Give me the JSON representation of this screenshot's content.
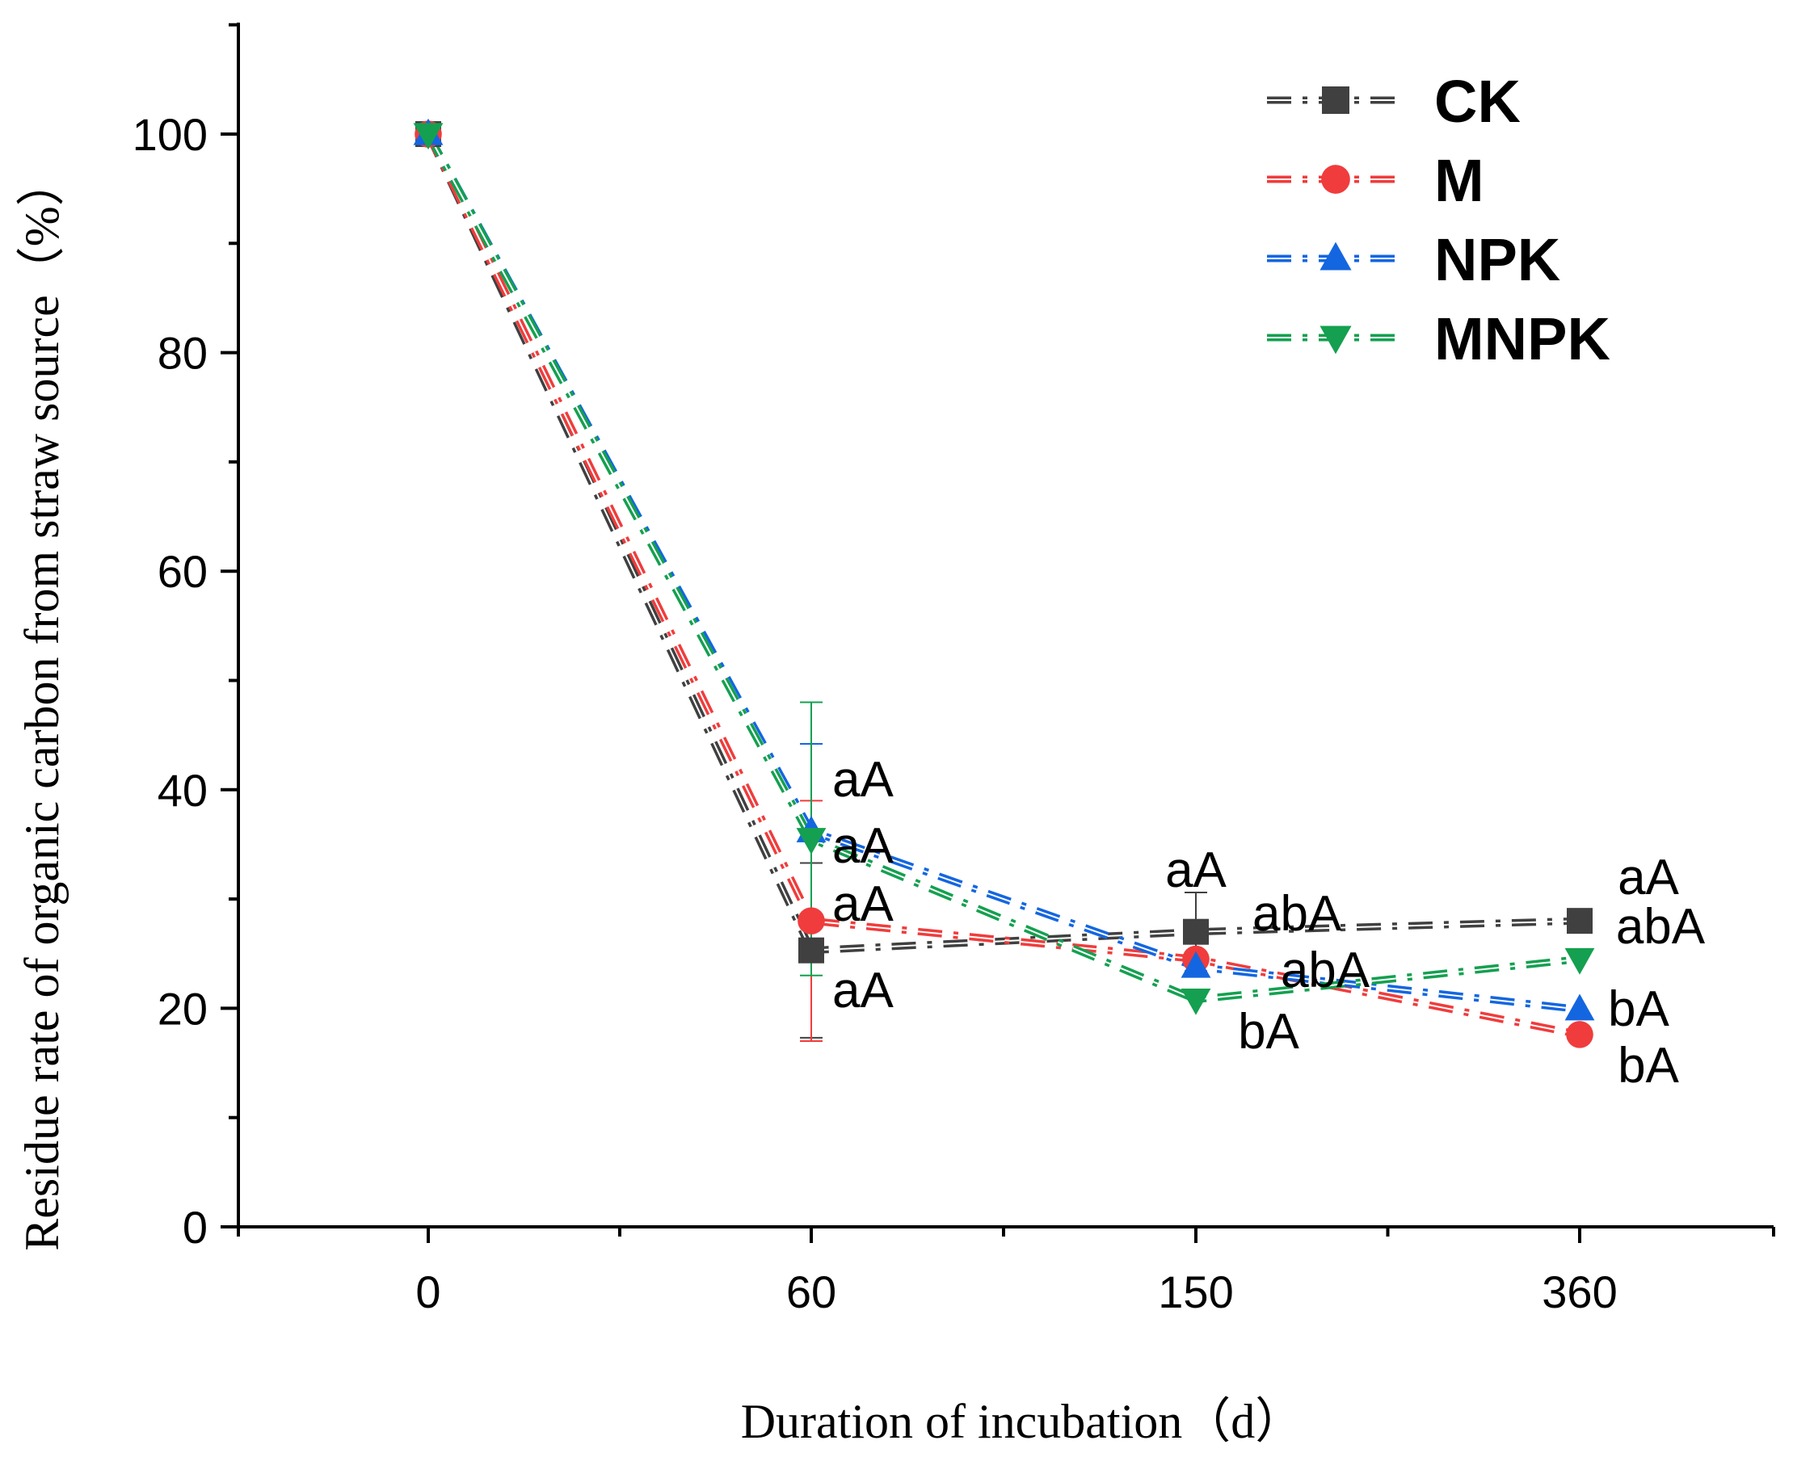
{
  "chart_data": {
    "type": "line",
    "title": "",
    "xlabel": "Duration of incubation（d）",
    "ylabel": "Residue rate of organic carbon from straw source（%）",
    "categories": [
      "0",
      "60",
      "150",
      "360"
    ],
    "ylim": [
      0,
      110
    ],
    "yticks": [
      0,
      20,
      40,
      60,
      80,
      100
    ],
    "legend_position": "top-right",
    "series": [
      {
        "name": "CK",
        "color": "#404040",
        "marker": "square",
        "values": [
          100,
          25.3,
          27,
          28
        ],
        "errors": [
          0,
          8,
          3.6,
          0
        ],
        "labels": [
          "",
          "aA",
          "aA",
          "aA"
        ]
      },
      {
        "name": "M",
        "color": "#f03c3c",
        "marker": "circle",
        "values": [
          100,
          28,
          24.5,
          17.6
        ],
        "errors": [
          0,
          11,
          0,
          0
        ],
        "labels": [
          "",
          "aA",
          "abA",
          "bA"
        ]
      },
      {
        "name": "NPK",
        "color": "#1466e0",
        "marker": "triangle-up",
        "values": [
          100,
          36.2,
          23.8,
          19.9
        ],
        "errors": [
          0,
          8,
          0,
          0
        ],
        "labels": [
          "",
          "aA",
          "abA",
          "bA"
        ]
      },
      {
        "name": "MNPK",
        "color": "#14a050",
        "marker": "triangle-down",
        "values": [
          100,
          35.5,
          20.8,
          24.5
        ],
        "errors": [
          0,
          12.5,
          0,
          0
        ],
        "labels": [
          "",
          "aA",
          "bA",
          "abA"
        ]
      }
    ]
  }
}
